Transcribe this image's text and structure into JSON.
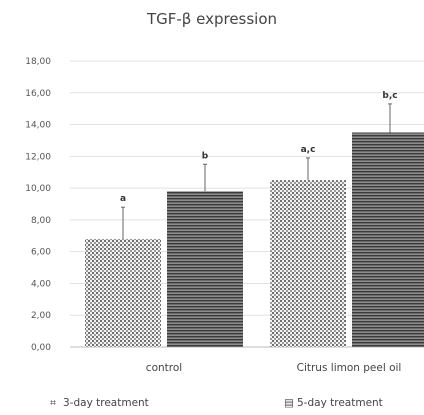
{
  "chart_data": {
    "type": "bar",
    "title": "TGF-β expression",
    "xlabel": "",
    "ylabel": "",
    "ylim": [
      0,
      18
    ],
    "y_ticks": [
      "0,00",
      "2,00",
      "4,00",
      "6,00",
      "8,00",
      "10,00",
      "12,00",
      "14,00",
      "16,00",
      "18,00"
    ],
    "grid": true,
    "legend_position": "bottom",
    "categories": [
      "control",
      "Citrus limon peel oil"
    ],
    "series": [
      {
        "name": "3-day treatment",
        "values": [
          6.8,
          10.5
        ],
        "errors": [
          2.0,
          1.4
        ],
        "labels": [
          "a",
          "a,c"
        ],
        "color": "#8a8a8a",
        "pattern": "dotted-checker"
      },
      {
        "name": "5-day treatment",
        "values": [
          9.8,
          13.5
        ],
        "errors": [
          1.7,
          1.8
        ],
        "labels": [
          "b",
          "b,c"
        ],
        "color": "#555555",
        "pattern": "horizontal-stripes"
      }
    ],
    "legend_symbols": [
      "⌗",
      "▤"
    ]
  }
}
